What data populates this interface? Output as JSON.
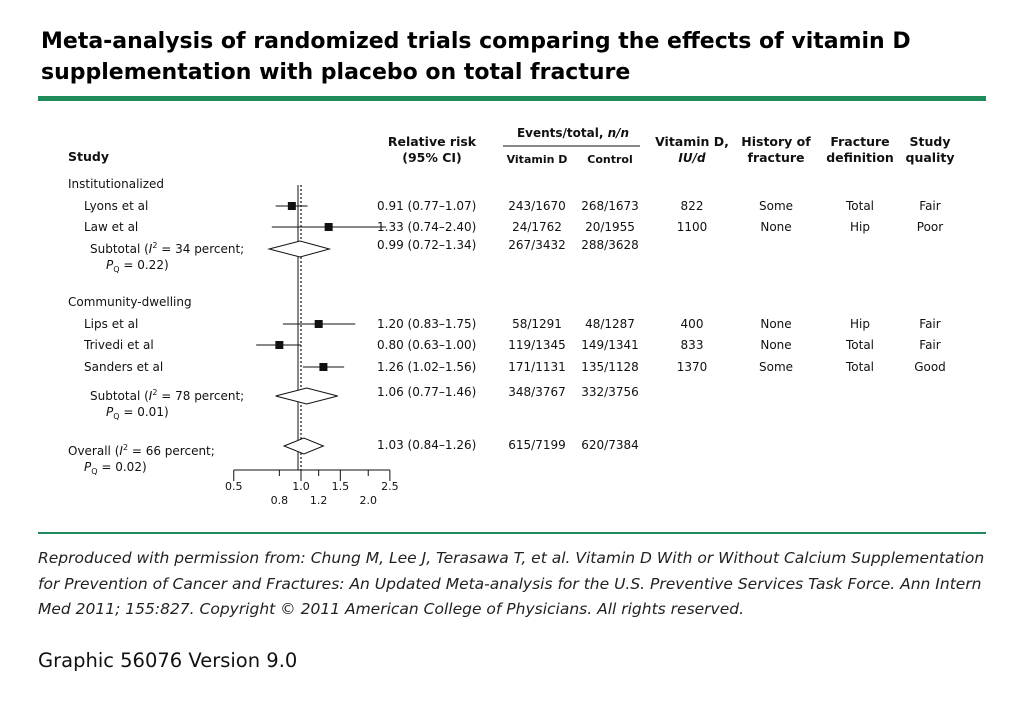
{
  "title": "Meta-analysis of randomized trials comparing the effects of vitamin D supplementation with placebo on total fracture",
  "colors": {
    "accent_rule": "#1f8a5a",
    "text": "#111111"
  },
  "caption": "Reproduced with permission from: Chung M, Lee J, Terasawa T, et al. Vitamin D With or Without Calcium Supplementation for Prevention of Cancer and Fractures: An Updated Meta-analysis for the U.S. Preventive Services Task Force. Ann Intern Med 2011; 155:827. Copyright © 2011 American College of Physicians. All rights reserved.",
  "graphic_id": "Graphic 56076 Version 9.0",
  "chart_data": {
    "type": "forest",
    "scale": "log",
    "null_value": 1.0,
    "headers": {
      "study": "Study",
      "rr_line1": "Relative risk",
      "rr_line2": "(95% CI)",
      "events_group": "Events/total, ",
      "events_group_italic": "n/n",
      "vitd_events": "Vitamin D",
      "control_events": "Control",
      "dose_line1": "Vitamin D,",
      "dose_line2": "IU/d",
      "history_line1": "History of",
      "history_line2": "fracture",
      "definition_line1": "Fracture",
      "definition_line2": "definition",
      "quality_line1": "Study",
      "quality_line2": "quality"
    },
    "axis": {
      "ticks_top": [
        "0.5",
        "1.0",
        "1.5",
        "2.5"
      ],
      "ticks_top_values": [
        0.5,
        1.0,
        1.5,
        2.5
      ],
      "ticks_bottom": [
        "0.8",
        "1.2",
        "2.0"
      ],
      "ticks_bottom_values": [
        0.8,
        1.2,
        2.0
      ]
    },
    "groups": [
      {
        "name": "Institutionalized",
        "studies": [
          {
            "study": "Lyons et al",
            "rr": 0.91,
            "lo": 0.77,
            "hi": 1.07,
            "rr_text": "0.91 (0.77–1.07)",
            "vitd": "243/1670",
            "control": "268/1673",
            "dose": "822",
            "history": "Some",
            "definition": "Total",
            "quality": "Fair"
          },
          {
            "study": "Law et al",
            "rr": 1.33,
            "lo": 0.74,
            "hi": 2.4,
            "rr_text": "1.33 (0.74–2.40)",
            "vitd": "24/1762",
            "control": "20/1955",
            "dose": "1100",
            "history": "None",
            "definition": "Hip",
            "quality": "Poor"
          }
        ],
        "subtotal": {
          "label_a": "Subtotal (",
          "label_i": "I",
          "label_sup": "2",
          "label_b": " = 34 percent;",
          "label_p": "P",
          "label_psub": "Q",
          "label_c": " = 0.22)",
          "rr": 0.99,
          "lo": 0.72,
          "hi": 1.34,
          "rr_text": "0.99 (0.72–1.34)",
          "vitd": "267/3432",
          "control": "288/3628"
        }
      },
      {
        "name": "Community-dwelling",
        "studies": [
          {
            "study": "Lips et al",
            "rr": 1.2,
            "lo": 0.83,
            "hi": 1.75,
            "rr_text": "1.20 (0.83–1.75)",
            "vitd": "58/1291",
            "control": "48/1287",
            "dose": "400",
            "history": "None",
            "definition": "Hip",
            "quality": "Fair"
          },
          {
            "study": "Trivedi et al",
            "rr": 0.8,
            "lo": 0.63,
            "hi": 1.0,
            "rr_text": "0.80 (0.63–1.00)",
            "vitd": "119/1345",
            "control": "149/1341",
            "dose": "833",
            "history": "None",
            "definition": "Total",
            "quality": "Fair"
          },
          {
            "study": "Sanders et al",
            "rr": 1.26,
            "lo": 1.02,
            "hi": 1.56,
            "rr_text": "1.26 (1.02–1.56)",
            "vitd": "171/1131",
            "control": "135/1128",
            "dose": "1370",
            "history": "Some",
            "definition": "Total",
            "quality": "Good"
          }
        ],
        "subtotal": {
          "label_a": "Subtotal (",
          "label_i": "I",
          "label_sup": "2",
          "label_b": " = 78 percent;",
          "label_p": "P",
          "label_psub": "Q",
          "label_c": " = 0.01)",
          "rr": 1.06,
          "lo": 0.77,
          "hi": 1.46,
          "rr_text": "1.06 (0.77–1.46)",
          "vitd": "348/3767",
          "control": "332/3756"
        }
      }
    ],
    "overall": {
      "label_a": "Overall (",
      "label_i": "I",
      "label_sup": "2",
      "label_b": " = 66 percent;",
      "label_p": "P",
      "label_psub": "Q",
      "label_c": " = 0.02)",
      "rr": 1.03,
      "lo": 0.84,
      "hi": 1.26,
      "rr_text": "1.03 (0.84–1.26)",
      "vitd": "615/7199",
      "control": "620/7384"
    }
  }
}
